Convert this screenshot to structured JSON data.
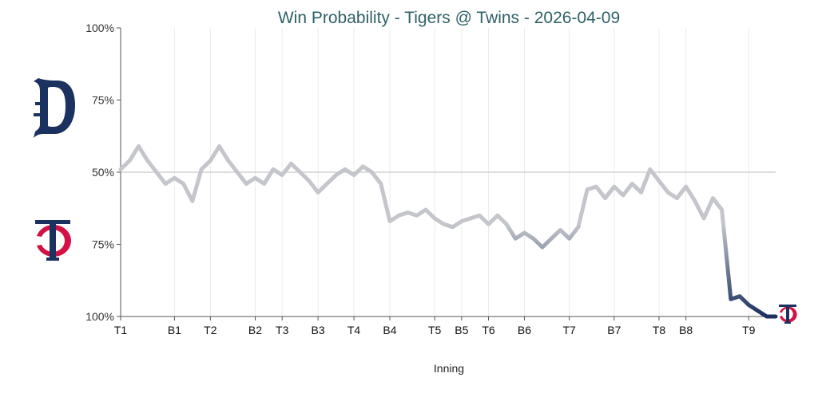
{
  "chart_data": {
    "type": "line",
    "title": "Win Probability - Tigers @ Twins - 2026-04-09",
    "xlabel": "Inning",
    "y_tick_labels": [
      "100%",
      "75%",
      "50%",
      "75%",
      "100%"
    ],
    "x_tick_labels": [
      "T1",
      "B1",
      "T2",
      "B2",
      "T3",
      "B3",
      "T4",
      "B4",
      "T5",
      "B5",
      "T6",
      "B6",
      "T7",
      "B7",
      "T8",
      "B8",
      "T9"
    ],
    "x_tick_positions": [
      0,
      6,
      10,
      15,
      18,
      22,
      26,
      30,
      35,
      38,
      41,
      45,
      50,
      55,
      60,
      63,
      70
    ],
    "ylim": [
      0,
      100
    ],
    "y_meaning": "Tigers win probability (%)",
    "grid": true,
    "series": [
      {
        "x": [
          0,
          1,
          2,
          3,
          4,
          5,
          6,
          7,
          8,
          9,
          10,
          11,
          12,
          13,
          14,
          15,
          16,
          17,
          18,
          19,
          20,
          21,
          22,
          23,
          24,
          25,
          26,
          27,
          28,
          29,
          30,
          31,
          32,
          33,
          34,
          35,
          36,
          37,
          38,
          39,
          40,
          41,
          42,
          43,
          44,
          45,
          46,
          47,
          48,
          49,
          50,
          51,
          52,
          53,
          54,
          55,
          56,
          57,
          58,
          59,
          60,
          61,
          62,
          63,
          64,
          65,
          66,
          67,
          68,
          69,
          70,
          71,
          72,
          73
        ],
        "values": [
          51,
          54,
          59,
          54,
          50,
          46,
          48,
          46,
          40,
          51,
          54,
          59,
          54,
          50,
          46,
          48,
          46,
          51,
          49,
          53,
          50,
          47,
          43,
          46,
          49,
          51,
          49,
          52,
          50,
          46,
          33,
          35,
          36,
          35,
          37,
          34,
          32,
          31,
          33,
          34,
          35,
          32,
          35,
          32,
          27,
          29,
          27,
          24,
          27,
          30,
          27,
          31,
          44,
          45,
          41,
          45,
          42,
          46,
          43,
          51,
          47,
          43,
          41,
          45,
          40,
          34,
          41,
          37,
          6,
          7,
          4,
          2,
          0,
          0
        ]
      }
    ],
    "colors": {
      "tigers": "#1b3160",
      "twins": "#1b3160",
      "neutral_line": "#c4c6cb",
      "grid": "#ececec",
      "midline": "#bdbdbd",
      "title": "#2f6166",
      "twins_red": "#d31145"
    },
    "team_logos": {
      "top": "tigers-d-logo",
      "bottom": "twins-tc-logo",
      "endpoint": "twins-tc-logo"
    }
  }
}
